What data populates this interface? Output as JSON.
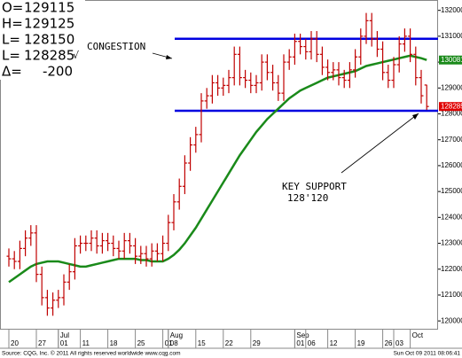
{
  "chart_data": {
    "type": "ohlc",
    "categories": [
      "20",
      null,
      null,
      null,
      null,
      "27",
      null,
      null,
      null,
      "01",
      null,
      null,
      null,
      "11",
      null,
      null,
      null,
      null,
      "18",
      null,
      null,
      null,
      null,
      "25",
      null,
      null,
      null,
      null,
      "01",
      "08",
      null,
      null,
      null,
      null,
      "15",
      null,
      null,
      null,
      null,
      "22",
      null,
      null,
      null,
      null,
      "29",
      null,
      null,
      null,
      null,
      null,
      null,
      null,
      null,
      null,
      null,
      null,
      null,
      null,
      null,
      null,
      null,
      null,
      null,
      null,
      null,
      null,
      null,
      null,
      null,
      null,
      "03",
      null,
      null,
      null
    ],
    "months": [
      null,
      null,
      null,
      null,
      null,
      null,
      null,
      null,
      null,
      "Jul",
      null,
      null,
      null,
      null,
      null,
      null,
      null,
      null,
      null,
      null,
      null,
      null,
      null,
      null,
      null,
      null,
      null,
      null,
      null,
      "Aug",
      null,
      null,
      null,
      null,
      null,
      null,
      null,
      null,
      null,
      null,
      null,
      null,
      null,
      null,
      null,
      null,
      null,
      null,
      null,
      null,
      null,
      null,
      "Sep",
      null,
      null,
      null,
      null,
      null,
      null,
      null,
      null,
      null,
      null,
      null,
      null,
      null,
      null,
      null,
      null,
      null,
      null,
      null,
      null,
      "Oct",
      null,
      null,
      null
    ],
    "sep_days": [
      "01",
      "06",
      "12",
      "19",
      "26"
    ],
    "open": [
      122500,
      122400,
      122300,
      122800,
      123200,
      123400,
      121800,
      120900,
      120500,
      120800,
      120900,
      121500,
      121900,
      122900,
      123000,
      123000,
      123200,
      122900,
      123100,
      123000,
      122800,
      122700,
      123100,
      122900,
      122500,
      122600,
      122400,
      122700,
      122600,
      123000,
      123800,
      124600,
      125200,
      126100,
      126800,
      127200,
      128500,
      128700,
      129200,
      129000,
      129100,
      129400,
      130300,
      129400,
      129300,
      129100,
      129200,
      130000,
      129600,
      129200,
      128800,
      130000,
      130200,
      130800,
      130600,
      130400,
      130900,
      130300,
      129800,
      129600,
      129700,
      129400,
      129300,
      129700,
      130200,
      131000,
      131600,
      130900,
      130500,
      129600,
      129300,
      129900,
      130700,
      131000,
      130300,
      129400,
      129115
    ],
    "high": [
      122800,
      122700,
      123100,
      123500,
      123700,
      123700,
      122100,
      121200,
      121100,
      121200,
      121800,
      122200,
      123200,
      123300,
      123300,
      123500,
      123500,
      123400,
      123400,
      123300,
      123100,
      123400,
      123400,
      123200,
      122900,
      122900,
      123000,
      123000,
      123300,
      124100,
      124900,
      125500,
      126400,
      127100,
      127500,
      128800,
      129000,
      129500,
      129500,
      129400,
      129700,
      130600,
      130600,
      129700,
      129600,
      129500,
      130300,
      130300,
      129900,
      129500,
      130300,
      130500,
      131100,
      131100,
      130900,
      131200,
      131200,
      130600,
      130100,
      130000,
      130000,
      129700,
      130000,
      130500,
      131300,
      131900,
      131900,
      131200,
      130800,
      129900,
      130200,
      131000,
      131300,
      131300,
      130600,
      129700,
      129125
    ],
    "low": [
      122100,
      122000,
      122000,
      122500,
      122900,
      121500,
      120600,
      120200,
      120200,
      120500,
      120600,
      121200,
      121600,
      122600,
      122700,
      122700,
      122600,
      122600,
      122700,
      122500,
      122400,
      122400,
      122600,
      122200,
      122200,
      122100,
      122100,
      122300,
      122300,
      122700,
      123500,
      124300,
      124900,
      125800,
      126500,
      126900,
      128200,
      128400,
      128700,
      128700,
      128800,
      129100,
      129100,
      129000,
      128800,
      128800,
      128900,
      129300,
      128900,
      128500,
      128500,
      129700,
      129900,
      130300,
      130100,
      130100,
      130000,
      129500,
      129300,
      129300,
      129100,
      129000,
      129000,
      129400,
      129900,
      130700,
      130600,
      130200,
      129300,
      129000,
      129000,
      129600,
      130400,
      130000,
      129100,
      128400,
      128150
    ],
    "close": [
      122400,
      122300,
      122800,
      123200,
      123400,
      121800,
      120900,
      120500,
      120800,
      120900,
      121500,
      121900,
      122900,
      123000,
      123000,
      123200,
      122900,
      123100,
      123000,
      122800,
      122700,
      123100,
      122900,
      122500,
      122600,
      122400,
      122700,
      122600,
      123000,
      123800,
      124600,
      125200,
      126100,
      126800,
      127200,
      128500,
      128700,
      129200,
      129000,
      129100,
      129400,
      130300,
      129400,
      129300,
      129100,
      129200,
      130000,
      129600,
      129200,
      128800,
      130000,
      130200,
      130800,
      130600,
      130400,
      130900,
      130300,
      129800,
      129600,
      129700,
      129400,
      129300,
      129700,
      130200,
      131000,
      131600,
      130900,
      130500,
      129600,
      129300,
      129900,
      130700,
      131000,
      130300,
      129400,
      128700,
      128285
    ],
    "color": "#c00000",
    "average": {
      "color": "#1a8a1a",
      "values": [
        121500,
        121650,
        121800,
        121950,
        122100,
        122200,
        122250,
        122300,
        122300,
        122300,
        122250,
        122200,
        122150,
        122100,
        122100,
        122150,
        122200,
        122250,
        122300,
        122350,
        122400,
        122400,
        122400,
        122400,
        122350,
        122350,
        122300,
        122300,
        122300,
        122400,
        122550,
        122750,
        123000,
        123300,
        123600,
        123950,
        124300,
        124650,
        125000,
        125350,
        125700,
        126050,
        126400,
        126700,
        127000,
        127300,
        127550,
        127800,
        128000,
        128200,
        128400,
        128600,
        128750,
        128900,
        129000,
        129100,
        129200,
        129300,
        129400,
        129450,
        129500,
        129550,
        129600,
        129650,
        129750,
        129850,
        129900,
        129950,
        130000,
        130050,
        130100,
        130150,
        130200,
        130250,
        130200,
        130150,
        130081
      ]
    },
    "levels": [
      {
        "value": 130900,
        "color": "#0000e0"
      },
      {
        "value": 128120,
        "color": "#0000e0"
      }
    ],
    "ylim": [
      119800,
      132400
    ],
    "yticks": [
      120000,
      121000,
      122000,
      123000,
      124000,
      125000,
      126000,
      127000,
      128000,
      129000,
      130000,
      131000,
      132000
    ],
    "grid": false,
    "panel": {
      "labels": [
        "O=",
        "H=",
        "L=",
        "L="
      ],
      "mark": "√",
      "change_label": "Δ=",
      "change": -200
    },
    "annotations": {
      "congestion": "CONGESTION",
      "support": "KEY SUPPORT",
      "support_level": "128'120"
    },
    "footer": {
      "source": "Source: CQG, Inc. © 2011 All rights reserved worldwide  www.cqg.com",
      "date": "Sun Oct 09 2011 08:06:41"
    }
  }
}
